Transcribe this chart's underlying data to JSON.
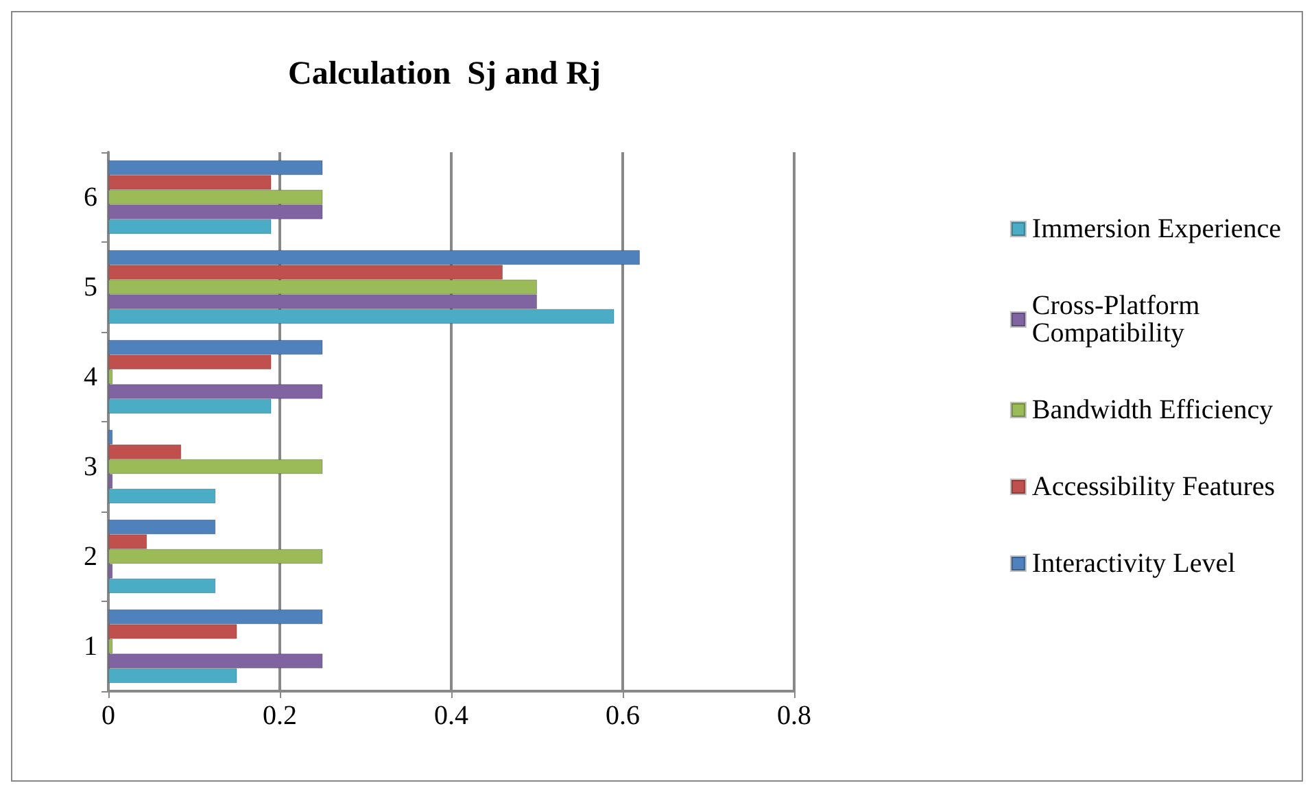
{
  "chart_data": {
    "type": "bar",
    "orientation": "horizontal",
    "title": "Calculation  Sj and Rj",
    "categories": [
      "6",
      "5",
      "4",
      "3",
      "2",
      "1"
    ],
    "series": [
      {
        "name": "Interactivity Level",
        "color": "#4f81bd",
        "values": [
          0.25,
          0.62,
          0.25,
          0.005,
          0.125,
          0.25
        ]
      },
      {
        "name": "Accessibility Features",
        "color": "#c0504d",
        "values": [
          0.19,
          0.46,
          0.19,
          0.085,
          0.045,
          0.15
        ]
      },
      {
        "name": "Bandwidth Efficiency",
        "color": "#9bbb59",
        "values": [
          0.25,
          0.5,
          0.005,
          0.25,
          0.25,
          0.005
        ]
      },
      {
        "name": "Cross-Platform Compatibility",
        "color": "#8064a2",
        "values": [
          0.25,
          0.5,
          0.25,
          0.005,
          0.005,
          0.25
        ]
      },
      {
        "name": "Immersion Experience",
        "color": "#4bacc6",
        "values": [
          0.19,
          0.59,
          0.19,
          0.125,
          0.125,
          0.15
        ]
      }
    ],
    "xlim": [
      0,
      0.8
    ],
    "xticks": [
      0,
      0.2,
      0.4,
      0.6,
      0.8
    ],
    "grid": "x",
    "legend": "right"
  }
}
